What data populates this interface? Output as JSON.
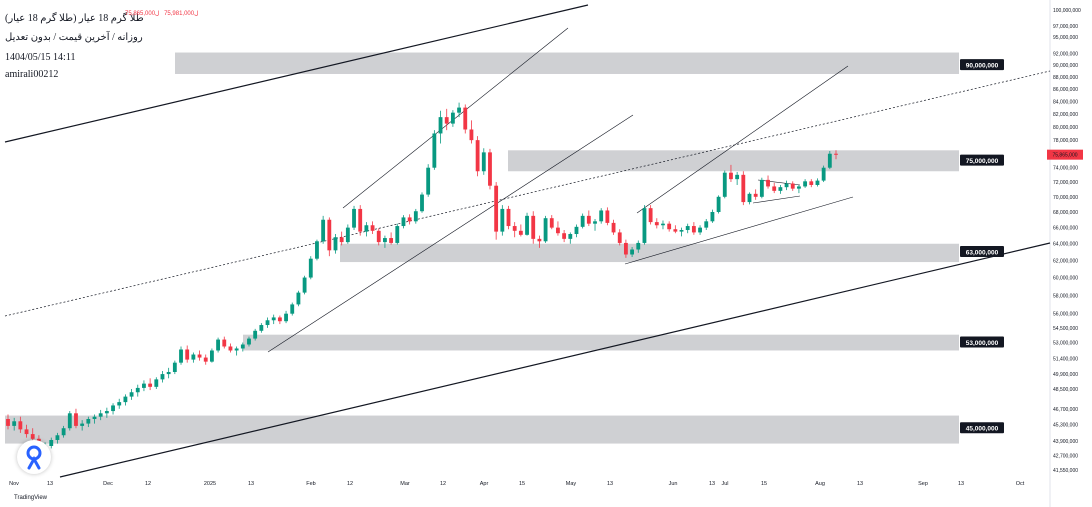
{
  "header": {
    "title": "طلا گرم 18 عیار (طلا گرم 18 عیار)",
    "subtitle": "روزانه / آخرین قیمت / بدون تعدیل",
    "datetime": "1404/05/15 14:11",
    "author": "amirali00212",
    "ohlc": [
      "ل75,981,000",
      "ل75,865,000"
    ]
  },
  "branding": {
    "name": "TradingView",
    "logo": "tradingview-logo-icon"
  },
  "colors": {
    "up": "#089981",
    "down": "#f23645",
    "zone": "#cfd0d3",
    "label_bg": "#131722",
    "price_label_bg": "#f23645"
  },
  "chart_data": {
    "type": "candlestick",
    "title": "طلا گرم 18 عیار",
    "interval": "daily",
    "last_price": 75865000,
    "last_price_label": "75,865,000",
    "y_axis": {
      "ticks": [
        "100,000,000",
        "97,000,000",
        "95,000,000",
        "92,000,000",
        "90,000,000",
        "88,000,000",
        "86,000,000",
        "84,000,000",
        "82,000,000",
        "80,000,000",
        "78,000,000",
        "76,000,000",
        "74,000,000",
        "72,000,000",
        "70,000,000",
        "68,000,000",
        "66,000,000",
        "64,000,000",
        "62,000,000",
        "60,000,000",
        "58,000,000",
        "56,000,000",
        "54,500,000",
        "53,000,000",
        "51,400,000",
        "49,900,000",
        "48,500,000",
        "46,700,000",
        "45,300,000",
        "43,900,000",
        "42,700,000",
        "41,550,000"
      ],
      "scale": "log"
    },
    "x_axis": {
      "ticks": [
        "Nov",
        "13",
        "Dec",
        "12",
        "2025",
        "13",
        "Feb",
        "12",
        "Mar",
        "12",
        "Apr",
        "15",
        "May",
        "13",
        "Jun",
        "13",
        "Jul",
        "15",
        "Aug",
        "13",
        "Sep",
        "13",
        "Oct"
      ]
    },
    "levels": [
      {
        "label": "90,000,000",
        "value": 90000000
      },
      {
        "label": "75,000,000",
        "value": 75000000
      },
      {
        "label": "63,000,000",
        "value": 63000000
      },
      {
        "label": "53,000,000",
        "value": 53000000
      },
      {
        "label": "45,000,000",
        "value": 45000000
      }
    ],
    "zones": [
      {
        "from": 88500000,
        "to": 92200000,
        "start": "Dec 12"
      },
      {
        "from": 73500000,
        "to": 76500000,
        "start": "Apr 15"
      },
      {
        "from": 61800000,
        "to": 64000000,
        "start": "Feb 12"
      },
      {
        "from": 52200000,
        "to": 53800000,
        "start": "Jan 13"
      },
      {
        "from": 43700000,
        "to": 46100000,
        "start": "Nov"
      }
    ],
    "candles": [
      [
        45800000,
        46200000,
        44900000,
        45200000
      ],
      [
        45200000,
        45900000,
        44800000,
        45600000
      ],
      [
        45600000,
        46000000,
        44600000,
        44900000
      ],
      [
        44900000,
        45300000,
        44200000,
        44500000
      ],
      [
        44500000,
        45000000,
        43900000,
        44100000
      ],
      [
        44100000,
        44400000,
        43100000,
        43300000
      ],
      [
        43300000,
        43800000,
        42800000,
        43500000
      ],
      [
        43500000,
        44200000,
        43300000,
        44000000
      ],
      [
        44000000,
        44600000,
        43700000,
        44400000
      ],
      [
        44400000,
        45200000,
        44200000,
        45000000
      ],
      [
        45000000,
        46500000,
        44800000,
        46300000
      ],
      [
        46300000,
        46700000,
        45000000,
        45200000
      ],
      [
        45200000,
        45700000,
        44800000,
        45400000
      ],
      [
        45400000,
        46000000,
        45100000,
        45800000
      ],
      [
        45800000,
        46200000,
        45400000,
        46000000
      ],
      [
        46000000,
        46600000,
        45700000,
        46300000
      ],
      [
        46300000,
        46800000,
        45900000,
        46500000
      ],
      [
        46500000,
        47200000,
        46200000,
        47000000
      ],
      [
        47000000,
        47600000,
        46700000,
        47300000
      ],
      [
        47300000,
        48000000,
        47000000,
        47800000
      ],
      [
        47800000,
        48500000,
        47500000,
        48200000
      ],
      [
        48200000,
        48900000,
        47800000,
        48600000
      ],
      [
        48600000,
        49300000,
        48300000,
        49000000
      ],
      [
        49000000,
        49500000,
        48400000,
        48700000
      ],
      [
        48700000,
        49600000,
        48500000,
        49400000
      ],
      [
        49400000,
        50200000,
        49100000,
        49900000
      ],
      [
        49900000,
        50500000,
        49500000,
        50100000
      ],
      [
        50100000,
        51200000,
        49900000,
        51000000
      ],
      [
        51000000,
        52600000,
        50800000,
        52300000
      ],
      [
        52300000,
        52700000,
        51000000,
        51300000
      ],
      [
        51300000,
        52000000,
        51000000,
        51800000
      ],
      [
        51800000,
        52200000,
        51200000,
        51500000
      ],
      [
        51500000,
        51800000,
        50800000,
        51100000
      ],
      [
        51100000,
        52400000,
        51000000,
        52200000
      ],
      [
        52200000,
        53500000,
        52000000,
        53300000
      ],
      [
        53300000,
        53600000,
        52400000,
        52600000
      ],
      [
        52600000,
        52900000,
        52000000,
        52200000
      ],
      [
        52200000,
        52600000,
        51700000,
        52400000
      ],
      [
        52400000,
        53000000,
        52100000,
        52800000
      ],
      [
        52800000,
        53600000,
        52600000,
        53400000
      ],
      [
        53400000,
        54400000,
        53200000,
        54200000
      ],
      [
        54200000,
        55000000,
        54000000,
        54800000
      ],
      [
        54800000,
        55600000,
        54500000,
        55300000
      ],
      [
        55300000,
        55900000,
        54900000,
        55600000
      ],
      [
        55600000,
        55800000,
        54900000,
        55200000
      ],
      [
        55200000,
        56300000,
        55000000,
        56000000
      ],
      [
        56000000,
        57200000,
        55800000,
        57000000
      ],
      [
        57000000,
        58500000,
        56800000,
        58300000
      ],
      [
        58300000,
        60200000,
        58100000,
        60000000
      ],
      [
        60000000,
        62500000,
        59800000,
        62200000
      ],
      [
        62200000,
        64500000,
        62000000,
        64300000
      ],
      [
        64300000,
        67500000,
        64000000,
        67000000
      ],
      [
        67000000,
        67300000,
        62500000,
        63200000
      ],
      [
        63200000,
        65200000,
        62800000,
        64800000
      ],
      [
        64800000,
        65500000,
        63800000,
        64200000
      ],
      [
        64200000,
        66400000,
        64000000,
        66000000
      ],
      [
        66000000,
        68800000,
        65700000,
        68400000
      ],
      [
        68400000,
        68900000,
        65000000,
        65500000
      ],
      [
        65500000,
        66700000,
        64900000,
        66300000
      ],
      [
        66300000,
        66800000,
        65200000,
        65600000
      ],
      [
        65600000,
        65900000,
        63800000,
        64200000
      ],
      [
        64200000,
        65000000,
        63500000,
        64700000
      ],
      [
        64700000,
        65400000,
        63900000,
        64100000
      ],
      [
        64100000,
        66500000,
        63900000,
        66200000
      ],
      [
        66200000,
        67600000,
        65900000,
        67300000
      ],
      [
        67300000,
        67700000,
        66400000,
        66800000
      ],
      [
        66800000,
        68400000,
        66500000,
        68100000
      ],
      [
        68100000,
        70600000,
        67900000,
        70300000
      ],
      [
        70300000,
        74500000,
        70000000,
        74000000
      ],
      [
        74000000,
        79500000,
        73700000,
        79000000
      ],
      [
        79000000,
        82500000,
        77500000,
        81500000
      ],
      [
        81500000,
        82800000,
        79500000,
        80500000
      ],
      [
        80500000,
        82600000,
        80000000,
        82200000
      ],
      [
        82200000,
        83800000,
        81500000,
        83000000
      ],
      [
        83000000,
        83500000,
        79000000,
        79600000
      ],
      [
        79600000,
        81000000,
        77500000,
        78000000
      ],
      [
        78000000,
        78600000,
        72800000,
        73500000
      ],
      [
        73500000,
        76800000,
        73000000,
        76200000
      ],
      [
        76200000,
        76700000,
        71000000,
        71500000
      ],
      [
        71500000,
        72000000,
        64500000,
        65500000
      ],
      [
        65500000,
        68900000,
        65000000,
        68400000
      ],
      [
        68400000,
        68800000,
        65800000,
        66200000
      ],
      [
        66200000,
        66700000,
        64800000,
        65600000
      ],
      [
        65600000,
        66400000,
        64900000,
        65100000
      ],
      [
        65100000,
        67900000,
        65000000,
        67500000
      ],
      [
        67500000,
        68100000,
        64000000,
        64600000
      ],
      [
        64600000,
        65000000,
        63500000,
        64300000
      ],
      [
        64300000,
        67500000,
        64100000,
        67200000
      ],
      [
        67200000,
        67600000,
        65800000,
        66000000
      ],
      [
        66000000,
        66800000,
        65000000,
        65300000
      ],
      [
        65300000,
        65700000,
        64200000,
        64600000
      ],
      [
        64600000,
        65400000,
        64000000,
        65200000
      ],
      [
        65200000,
        66400000,
        64800000,
        66100000
      ],
      [
        66100000,
        67800000,
        65900000,
        67500000
      ],
      [
        67500000,
        68200000,
        66200000,
        66500000
      ],
      [
        66500000,
        67100000,
        65600000,
        66800000
      ],
      [
        66800000,
        68500000,
        66500000,
        68200000
      ],
      [
        68200000,
        68600000,
        66300000,
        66600000
      ],
      [
        66600000,
        67000000,
        65100000,
        65400000
      ],
      [
        65400000,
        65800000,
        63800000,
        64100000
      ],
      [
        64100000,
        64500000,
        62300000,
        62700000
      ],
      [
        62700000,
        63600000,
        62400000,
        63300000
      ],
      [
        63300000,
        64400000,
        62900000,
        64100000
      ],
      [
        64100000,
        68900000,
        63900000,
        68500000
      ],
      [
        68500000,
        68900000,
        66400000,
        66700000
      ],
      [
        66700000,
        67200000,
        65900000,
        66300000
      ],
      [
        66300000,
        66900000,
        65800000,
        66500000
      ],
      [
        66500000,
        66800000,
        65500000,
        65800000
      ],
      [
        65800000,
        66300000,
        65300000,
        65500000
      ],
      [
        65500000,
        66000000,
        64900000,
        65700000
      ],
      [
        65700000,
        66500000,
        65300000,
        66200000
      ],
      [
        66200000,
        66700000,
        65100000,
        65400000
      ],
      [
        65400000,
        66300000,
        65100000,
        66000000
      ],
      [
        66000000,
        67100000,
        65700000,
        66800000
      ],
      [
        66800000,
        68300000,
        66600000,
        68000000
      ],
      [
        68000000,
        70200000,
        67800000,
        70000000
      ],
      [
        70000000,
        73600000,
        69800000,
        73300000
      ],
      [
        73300000,
        74400000,
        72000000,
        72400000
      ],
      [
        72400000,
        73400000,
        71600000,
        73000000
      ],
      [
        73000000,
        73500000,
        68900000,
        69300000
      ],
      [
        69300000,
        70600000,
        69000000,
        70400000
      ],
      [
        70400000,
        71000000,
        69600000,
        70000000
      ],
      [
        70000000,
        72600000,
        69800000,
        72300000
      ],
      [
        72300000,
        72900000,
        71100000,
        71400000
      ],
      [
        71400000,
        71900000,
        70500000,
        70800000
      ],
      [
        70800000,
        71600000,
        70400000,
        71300000
      ],
      [
        71300000,
        72200000,
        70900000,
        71800000
      ],
      [
        71800000,
        72100000,
        70800000,
        71100000
      ],
      [
        71100000,
        71600000,
        70500000,
        71400000
      ],
      [
        71400000,
        72400000,
        71200000,
        72100000
      ],
      [
        72100000,
        72400000,
        71300000,
        71600000
      ],
      [
        71600000,
        72500000,
        71400000,
        72200000
      ],
      [
        72200000,
        74300000,
        72000000,
        74000000
      ],
      [
        74000000,
        76400000,
        73800000,
        76000000
      ],
      [
        76000000,
        76500000,
        75200000,
        75865000
      ]
    ]
  }
}
